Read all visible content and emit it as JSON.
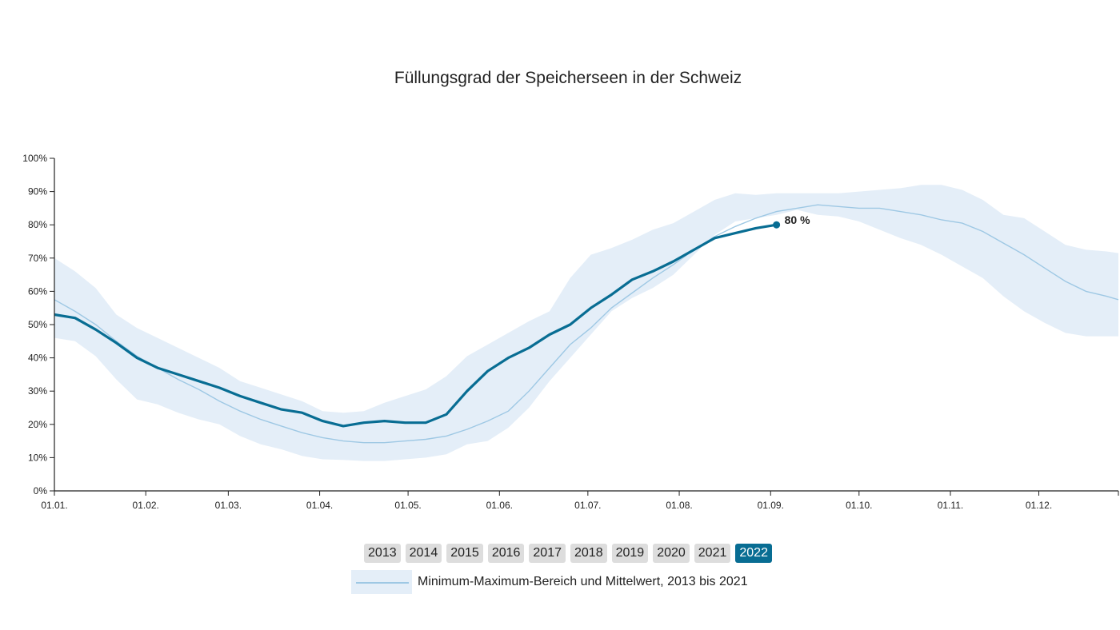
{
  "chart_data": {
    "type": "area",
    "title": "Füllungsgrad der Speicherseen in der Schweiz",
    "xlabel": "",
    "ylabel": "",
    "x_unit": "day_of_year",
    "ylim": [
      0,
      100
    ],
    "yticks": [
      0,
      10,
      20,
      30,
      40,
      50,
      60,
      70,
      80,
      90,
      100
    ],
    "ytick_labels": [
      "0%",
      "10%",
      "20%",
      "30%",
      "40%",
      "50%",
      "60%",
      "70%",
      "80%",
      "90%",
      "100%"
    ],
    "xlim": [
      1,
      362
    ],
    "xticks": [
      {
        "day": 1,
        "label": "01.01."
      },
      {
        "day": 32,
        "label": "01.02."
      },
      {
        "day": 60,
        "label": "01.03."
      },
      {
        "day": 91,
        "label": "01.04."
      },
      {
        "day": 121,
        "label": "01.05."
      },
      {
        "day": 152,
        "label": "01.06."
      },
      {
        "day": 182,
        "label": "01.07."
      },
      {
        "day": 213,
        "label": "01.08."
      },
      {
        "day": 244,
        "label": "01.09."
      },
      {
        "day": 274,
        "label": "01.10."
      },
      {
        "day": 305,
        "label": "01.11."
      },
      {
        "day": 335,
        "label": "01.12."
      }
    ],
    "range_band": {
      "name": "Minimum-Maximum-Bereich und Mittelwert, 2013 bis 2021",
      "x": [
        1,
        8,
        15,
        22,
        29,
        36,
        43,
        50,
        57,
        64,
        71,
        78,
        85,
        92,
        99,
        106,
        113,
        120,
        127,
        134,
        141,
        148,
        155,
        162,
        169,
        176,
        183,
        190,
        197,
        204,
        211,
        218,
        225,
        232,
        239,
        246,
        253,
        260,
        267,
        274,
        281,
        288,
        295,
        302,
        309,
        316,
        323,
        330,
        337,
        344,
        351,
        358,
        362
      ],
      "min": [
        46,
        45,
        40.5,
        33.5,
        27.5,
        26,
        23.5,
        21.5,
        20,
        16.5,
        14,
        12.5,
        10.5,
        9.5,
        9.3,
        9,
        9,
        9.5,
        10,
        11,
        14,
        15,
        19,
        25,
        33,
        40,
        47,
        54,
        58,
        61,
        65,
        71,
        77,
        81,
        82,
        83,
        84.5,
        83,
        82.5,
        81,
        78.5,
        76,
        74,
        71,
        67.5,
        64,
        58.5,
        54,
        50.5,
        47.5,
        46.5,
        46.5,
        46.5
      ],
      "max": [
        70,
        66,
        61,
        53,
        49,
        46,
        43,
        40,
        37,
        33,
        31,
        29,
        27,
        24,
        23.5,
        24,
        26.5,
        28.5,
        30.5,
        34.5,
        40.5,
        44,
        47.5,
        51,
        54,
        64,
        71,
        73,
        75.5,
        78.5,
        80.5,
        84,
        87.5,
        89.5,
        89,
        89.5,
        89.5,
        89.5,
        89.5,
        90,
        90.5,
        91,
        92,
        92,
        90.5,
        87.5,
        83,
        82,
        78,
        74,
        72.5,
        72,
        71.5
      ],
      "mean": [
        57.5,
        54,
        50,
        45,
        40.5,
        37,
        33.5,
        30.5,
        27,
        24,
        21.5,
        19.5,
        17.5,
        16,
        15,
        14.5,
        14.5,
        15,
        15.5,
        16.5,
        18.5,
        21,
        24,
        30,
        37,
        44,
        49,
        55,
        59.5,
        64,
        68,
        72.5,
        76.5,
        79.5,
        82,
        84,
        85,
        86,
        85.5,
        85,
        85,
        84,
        83,
        81.5,
        80.5,
        78,
        74.5,
        71,
        67,
        63,
        60,
        58.5,
        57.5
      ]
    },
    "series": [
      {
        "name": "2022",
        "color": "#086d93",
        "x": [
          1,
          8,
          15,
          22,
          29,
          36,
          43,
          50,
          57,
          64,
          71,
          78,
          85,
          92,
          99,
          106,
          113,
          120,
          127,
          134,
          141,
          148,
          155,
          162,
          169,
          176,
          183,
          190,
          197,
          204,
          211,
          218,
          225,
          232,
          239,
          246
        ],
        "values": [
          53,
          52,
          48.5,
          44.5,
          40,
          37,
          35,
          33,
          31,
          28.5,
          26.5,
          24.5,
          23.5,
          21,
          19.5,
          20.5,
          21,
          20.5,
          20.5,
          23,
          30,
          36,
          40,
          43,
          47,
          50,
          55,
          59,
          63.5,
          66,
          69,
          72.5,
          76,
          77.5,
          79,
          80
        ]
      }
    ],
    "annotation": {
      "text": "80 %",
      "day": 246,
      "value": 80
    },
    "colors": {
      "band": "#e4eef8",
      "mean": "#9ec8e4",
      "highlight": "#086d93"
    }
  },
  "year_buttons": [
    "2013",
    "2014",
    "2015",
    "2016",
    "2017",
    "2018",
    "2019",
    "2020",
    "2021",
    "2022"
  ],
  "selected_year": "2022",
  "legend": {
    "label": "Minimum-Maximum-Bereich und Mittelwert, 2013 bis 2021"
  }
}
